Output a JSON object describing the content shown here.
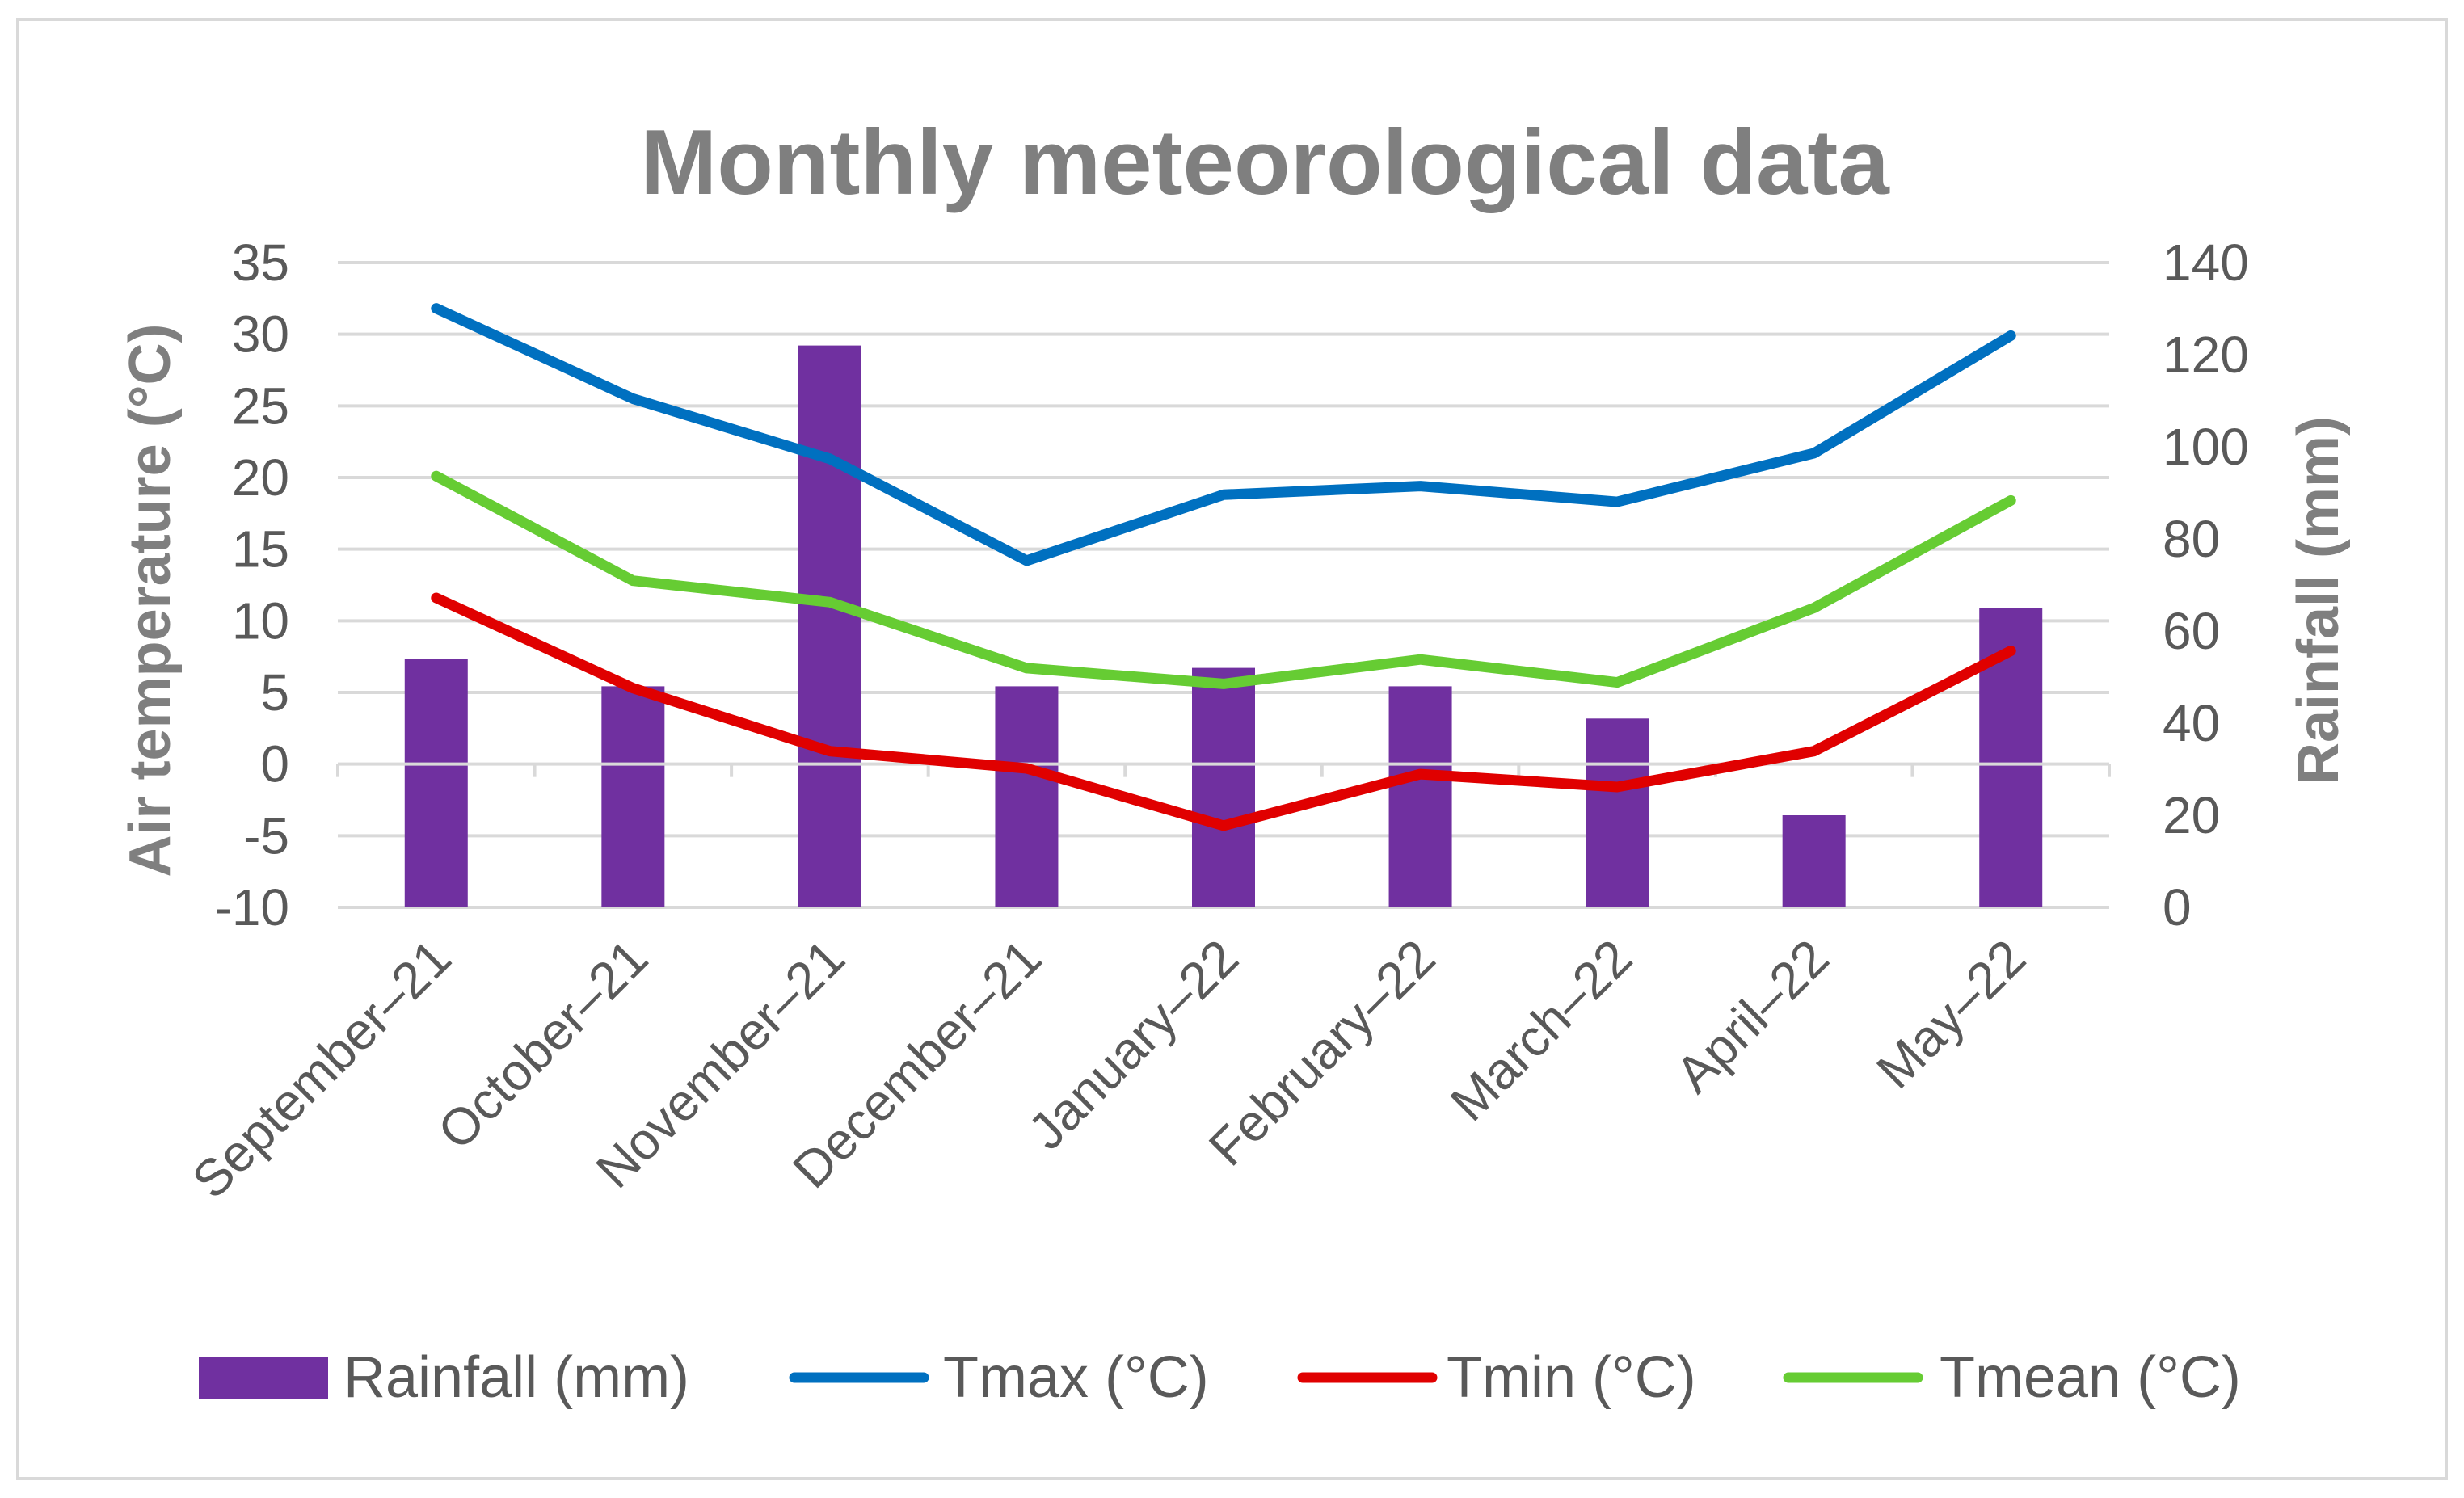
{
  "chart_data": {
    "type": "bar+line",
    "title": "Monthly meteorological data",
    "categories": [
      "September‒21",
      "October‒21",
      "November‒21",
      "December‒21",
      "January‒22",
      "February‒22",
      "March‒22",
      "April‒22",
      "May‒22"
    ],
    "y_left": {
      "label": "Air temperature (°C)",
      "range": [
        -10,
        35
      ],
      "ticks": [
        35,
        30,
        25,
        20,
        15,
        10,
        5,
        0,
        -5,
        -10
      ]
    },
    "y_right": {
      "label": "Rainfall (mm)",
      "range": [
        0,
        140
      ],
      "ticks": [
        140,
        120,
        100,
        80,
        60,
        40,
        20,
        0
      ]
    },
    "gridlines": true,
    "legend_position": "bottom",
    "series": [
      {
        "name": "Rainfall (mm)",
        "kind": "bar",
        "axis": "right",
        "color": "#7030a0",
        "values": [
          54,
          48,
          122,
          48,
          52,
          48,
          41,
          20,
          65
        ]
      },
      {
        "name": "Tmax (°C)",
        "kind": "line",
        "axis": "left",
        "color": "#0070c0",
        "values": [
          31.8,
          25.5,
          21.3,
          14.2,
          18.8,
          19.4,
          18.3,
          21.7,
          29.9
        ]
      },
      {
        "name": "Tmin (°C)",
        "kind": "line",
        "axis": "left",
        "color": "#e00000",
        "values": [
          11.6,
          5.3,
          0.9,
          -0.3,
          -4.3,
          -0.7,
          -1.6,
          0.9,
          7.9
        ]
      },
      {
        "name": "Tmean (°C)",
        "kind": "line",
        "axis": "left",
        "color": "#66cc33",
        "values": [
          20.1,
          12.8,
          11.3,
          6.7,
          5.6,
          7.3,
          5.7,
          10.9,
          18.4
        ]
      }
    ]
  }
}
